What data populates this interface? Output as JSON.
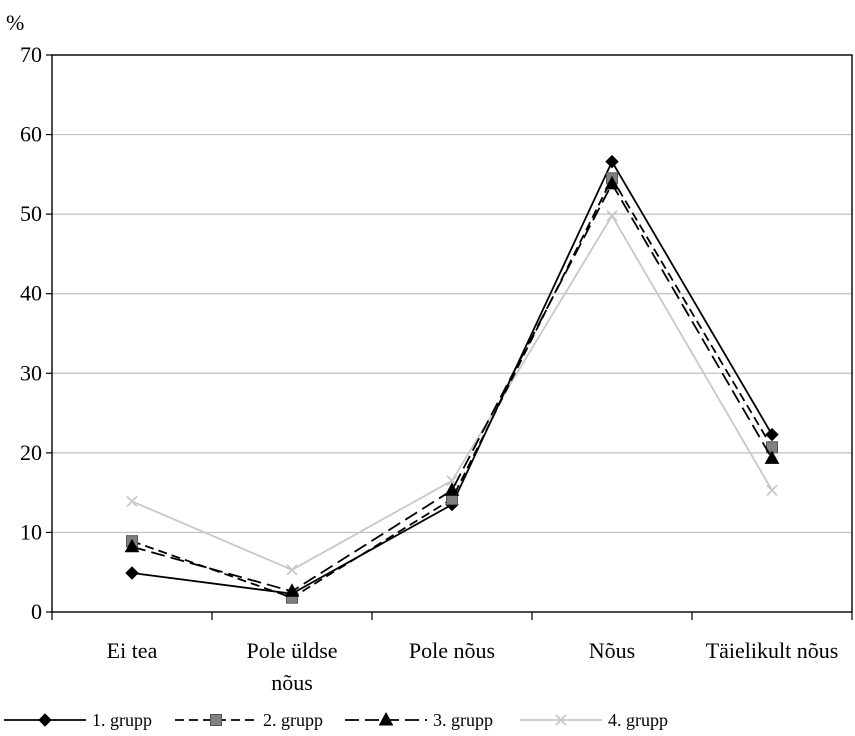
{
  "chart_data": {
    "type": "line",
    "unit_label": "%",
    "categories": [
      [
        "Ei tea"
      ],
      [
        "Pole üldse",
        "nõus"
      ],
      [
        "Pole nõus"
      ],
      [
        "Nõus"
      ],
      [
        "Täielikult nõus"
      ]
    ],
    "ylim": [
      0,
      70
    ],
    "yticks": [
      0,
      10,
      20,
      30,
      40,
      50,
      60,
      70
    ],
    "grid": true,
    "legend_position": "bottom",
    "series": [
      {
        "name": "1. grupp",
        "values": [
          4.9,
          2.3,
          13.5,
          56.6,
          22.3
        ],
        "color": "#000000",
        "dash": "solid",
        "marker": "diamond"
      },
      {
        "name": "2. grupp",
        "values": [
          8.9,
          1.8,
          14.2,
          54.5,
          20.7
        ],
        "color": "#000000",
        "dash": "dashed",
        "marker": "square",
        "marker_color": "#808080"
      },
      {
        "name": "3. grupp",
        "values": [
          8.2,
          2.6,
          15.3,
          53.8,
          19.3
        ],
        "color": "#000000",
        "dash": "longdash",
        "marker": "triangle"
      },
      {
        "name": "4. grupp",
        "values": [
          13.9,
          5.3,
          16.5,
          49.8,
          15.3
        ],
        "color": "#c8c8c8",
        "dash": "solid",
        "marker": "cross"
      }
    ]
  }
}
